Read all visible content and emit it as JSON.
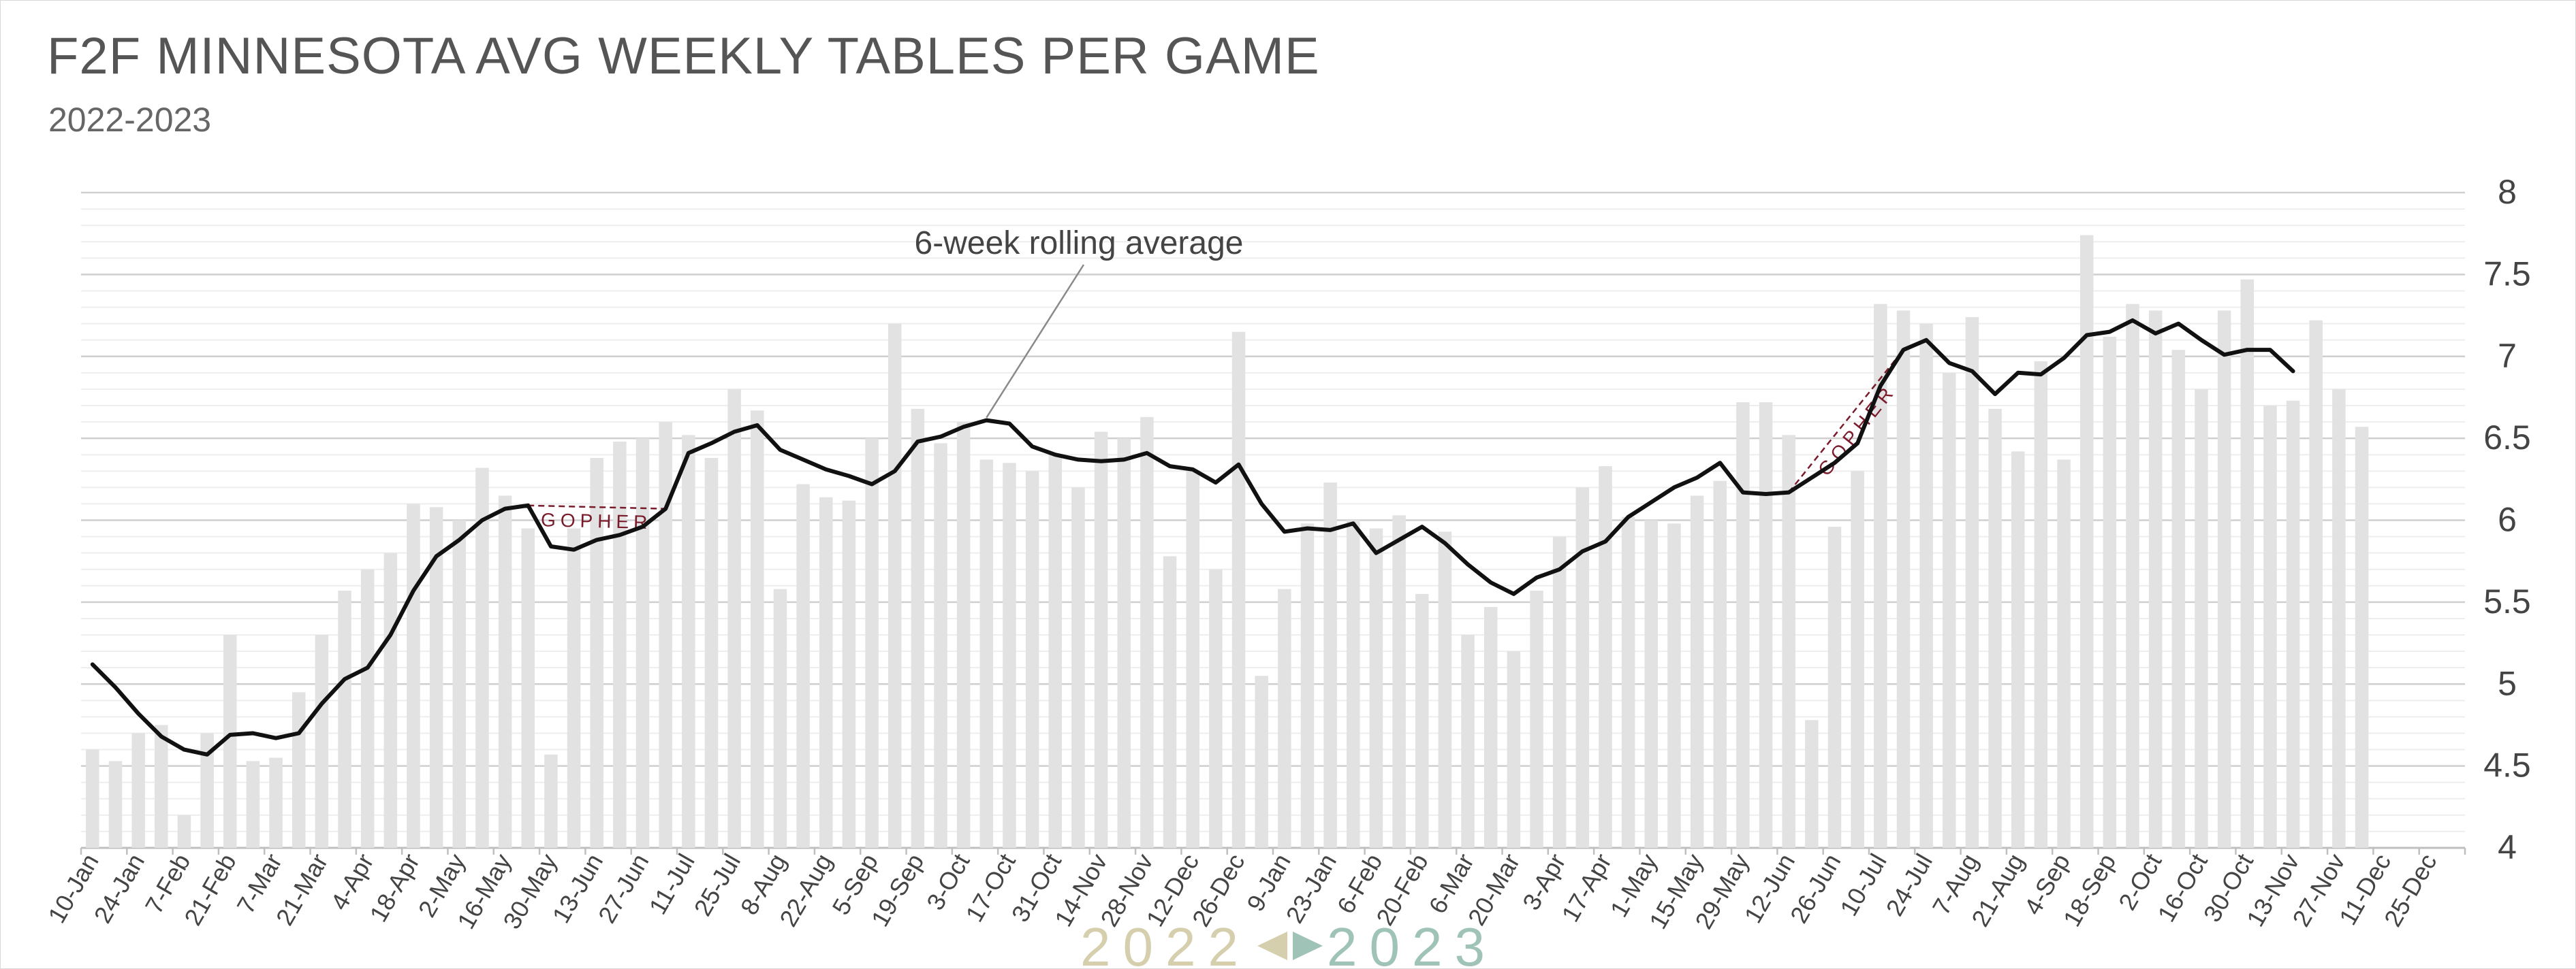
{
  "chart_data": {
    "type": "bar",
    "title": "F2F MINNESOTA AVG WEEKLY TABLES PER GAME",
    "subtitle": "2022-2023",
    "ylim": [
      4,
      8
    ],
    "yticks": [
      "4",
      "4.5",
      "5",
      "5.5",
      "6",
      "6.5",
      "7",
      "7.5",
      "8"
    ],
    "ytick_values": [
      4,
      4.5,
      5,
      5.5,
      6,
      6.5,
      7,
      7.5,
      8
    ],
    "grid": "horizontal",
    "xtick_labels": [
      "10-Jan",
      "24-Jan",
      "7-Feb",
      "21-Feb",
      "7-Mar",
      "21-Mar",
      "4-Apr",
      "18-Apr",
      "2-May",
      "16-May",
      "30-May",
      "13-Jun",
      "27-Jun",
      "11-Jul",
      "25-Jul",
      "8-Aug",
      "22-Aug",
      "5-Sep",
      "19-Sep",
      "3-Oct",
      "17-Oct",
      "31-Oct",
      "14-Nov",
      "28-Nov",
      "12-Dec",
      "26-Dec",
      "9-Jan",
      "23-Jan",
      "6-Feb",
      "20-Feb",
      "6-Mar",
      "20-Mar",
      "3-Apr",
      "17-Apr",
      "1-May",
      "15-May",
      "29-May",
      "12-Jun",
      "26-Jun",
      "10-Jul",
      "24-Jul",
      "7-Aug",
      "21-Aug",
      "4-Sep",
      "18-Sep",
      "2-Oct",
      "16-Oct",
      "30-Oct",
      "13-Nov",
      "27-Nov",
      "11-Dec",
      "25-Dec"
    ],
    "weekly_bars": [
      4.6,
      4.53,
      4.7,
      4.75,
      4.2,
      4.7,
      5.3,
      4.53,
      4.55,
      4.95,
      5.3,
      5.57,
      5.7,
      5.8,
      6.1,
      6.08,
      6.0,
      6.32,
      6.15,
      5.95,
      4.57,
      5.95,
      6.38,
      6.48,
      6.5,
      6.6,
      6.52,
      6.38,
      6.8,
      6.67,
      5.58,
      6.22,
      6.14,
      6.12,
      6.5,
      7.2,
      6.68,
      6.47,
      6.6,
      6.37,
      6.35,
      6.3,
      6.4,
      6.2,
      6.54,
      6.5,
      6.63,
      5.78,
      6.3,
      5.7,
      7.15,
      5.05,
      5.58,
      5.98,
      6.23,
      6.0,
      5.95,
      6.03,
      5.55,
      5.93,
      5.3,
      5.47,
      5.2,
      5.57,
      5.9,
      6.2,
      6.33,
      6.02,
      6.0,
      5.98,
      6.15,
      6.24,
      6.72,
      6.72,
      6.52,
      4.78,
      5.96,
      6.3,
      7.32,
      7.28,
      7.2,
      6.9,
      7.24,
      6.68,
      6.42,
      6.97,
      6.37,
      7.74,
      7.12,
      7.32,
      7.28,
      7.04,
      6.8,
      7.28,
      7.47,
      6.7,
      6.73,
      7.22,
      6.8,
      6.57
    ],
    "rolling_average": [
      5.12,
      4.98,
      4.82,
      4.68,
      4.6,
      4.57,
      4.69,
      4.7,
      4.67,
      4.7,
      4.88,
      5.03,
      5.1,
      5.3,
      5.57,
      5.78,
      5.88,
      6.0,
      6.07,
      6.09,
      5.84,
      5.82,
      5.88,
      5.91,
      5.96,
      6.07,
      6.41,
      6.47,
      6.54,
      6.58,
      6.43,
      6.37,
      6.31,
      6.27,
      6.22,
      6.3,
      6.48,
      6.51,
      6.57,
      6.61,
      6.59,
      6.45,
      6.4,
      6.37,
      6.36,
      6.37,
      6.41,
      6.33,
      6.31,
      6.23,
      6.34,
      6.1,
      5.93,
      5.95,
      5.94,
      5.98,
      5.8,
      5.88,
      5.96,
      5.86,
      5.73,
      5.62,
      5.55,
      5.65,
      5.7,
      5.81,
      5.87,
      6.02,
      6.11,
      6.2,
      6.26,
      6.35,
      6.17,
      6.16,
      6.17,
      6.26,
      6.35,
      6.47,
      6.82,
      7.04,
      7.1,
      6.96,
      6.91,
      6.77,
      6.9,
      6.89,
      6.99,
      7.13,
      7.15,
      7.22,
      7.14,
      7.2,
      7.1,
      7.01,
      7.04,
      7.04,
      6.91
    ],
    "annotation": "6-week rolling average",
    "gopher_label": "GOPHER",
    "year_left": "2022",
    "year_right": "2023",
    "colors": {
      "bar": "#e2e2e2",
      "line": "#111111",
      "grid_major": "#cfcfcf",
      "grid_minor": "#eeeeee",
      "gopher": "#7a1a2a",
      "year_left": "#d6cfae",
      "year_right": "#9fc3b6"
    }
  }
}
